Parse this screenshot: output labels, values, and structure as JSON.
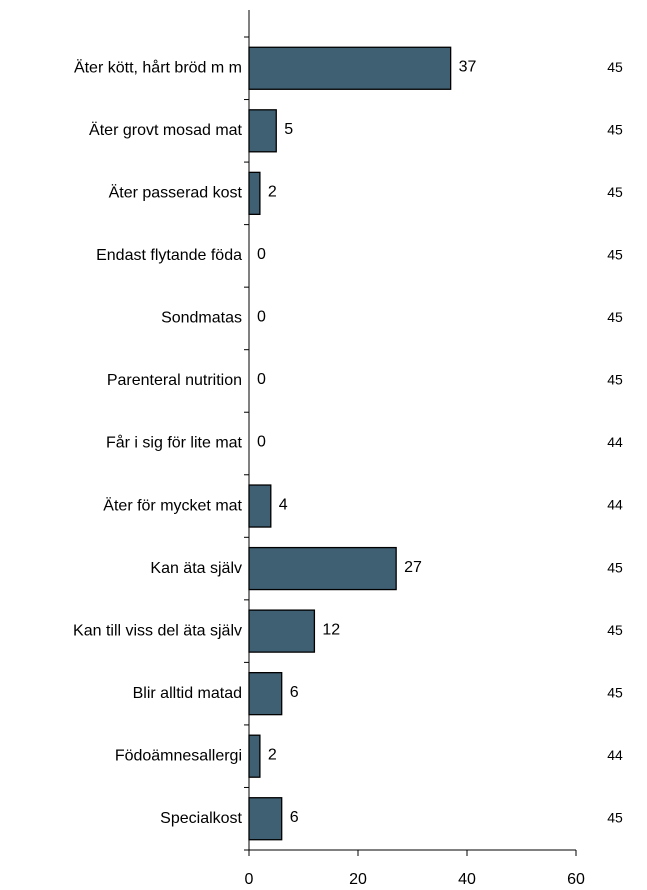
{
  "chart_data": {
    "type": "barh",
    "categories": [
      "Äter kött, hårt bröd m m",
      "Äter grovt mosad mat",
      "Äter passerad kost",
      "Endast flytande föda",
      "Sondmatas",
      "Parenteral nutrition",
      "Får i sig för lite mat",
      "Äter för mycket mat",
      "Kan äta själv",
      "Kan till viss del äta själv",
      "Blir alltid matad",
      "Födoämnesallergi",
      "Specialkost"
    ],
    "values": [
      37,
      5,
      2,
      0,
      0,
      0,
      0,
      4,
      27,
      12,
      6,
      2,
      6
    ],
    "n": [
      45,
      45,
      45,
      45,
      45,
      45,
      44,
      44,
      45,
      45,
      45,
      44,
      45
    ],
    "color": "#3f5f73",
    "xlim": [
      0,
      60
    ],
    "xticks": [
      0,
      20,
      40,
      60
    ]
  }
}
